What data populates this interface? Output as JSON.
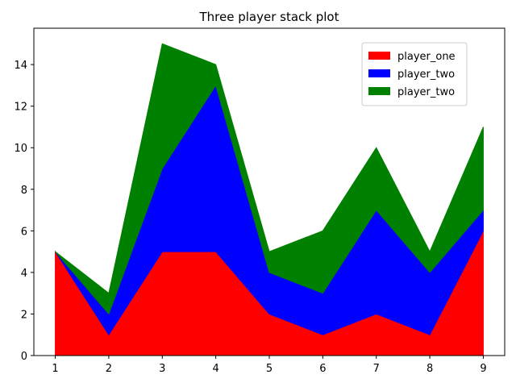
{
  "chart_data": {
    "type": "area",
    "stacked": true,
    "title": "Three player stack plot",
    "xlabel": "",
    "ylabel": "",
    "x": [
      1,
      2,
      3,
      4,
      5,
      6,
      7,
      8,
      9
    ],
    "series": [
      {
        "name": "player_one",
        "color": "#ff0000",
        "values": [
          5,
          1,
          5,
          5,
          2,
          1,
          2,
          1,
          6
        ]
      },
      {
        "name": "player_two",
        "color": "#0000ff",
        "values": [
          0,
          1,
          4,
          8,
          2,
          2,
          5,
          3,
          1
        ]
      },
      {
        "name": "player_two",
        "color": "#008000",
        "values": [
          0,
          1,
          6,
          1,
          1,
          3,
          3,
          1,
          4
        ]
      }
    ],
    "xlim": [
      0.6,
      9.4
    ],
    "ylim": [
      0,
      15.75
    ],
    "xticks": [
      1,
      2,
      3,
      4,
      5,
      6,
      7,
      8,
      9
    ],
    "yticks": [
      0,
      2,
      4,
      6,
      8,
      10,
      12,
      14
    ],
    "grid": false,
    "legend_position": "top-right"
  }
}
